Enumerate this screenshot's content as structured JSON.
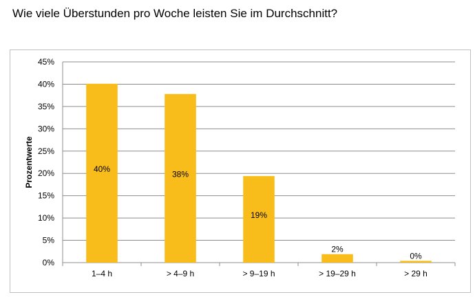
{
  "title": "Wie viele Überstunden pro Woche leisten Sie im Durchschnitt?",
  "chart_data": {
    "type": "bar",
    "title": "Wie viele Überstunden pro Woche leisten Sie im Durchschnitt?",
    "xlabel": "",
    "ylabel": "Prozentwerte",
    "categories": [
      "1–4 h",
      "> 4–9 h",
      "> 9–19 h",
      "> 19–29 h",
      "> 29 h"
    ],
    "values": [
      40,
      38,
      19,
      2,
      0
    ],
    "bar_heights": [
      40.1,
      37.8,
      19.4,
      1.9,
      0.4
    ],
    "data_labels": [
      "40%",
      "38%",
      "19%",
      "2%",
      "0%"
    ],
    "ylim": [
      0,
      45
    ],
    "yticks": [
      0,
      5,
      10,
      15,
      20,
      25,
      30,
      35,
      40,
      45
    ],
    "ytick_labels": [
      "0%",
      "5%",
      "10%",
      "15%",
      "20%",
      "25%",
      "30%",
      "35%",
      "40%",
      "45%"
    ],
    "grid": true,
    "legend": "none",
    "colors": {
      "bar": "#f9bd1b",
      "grid": "#8c8c8c",
      "axis": "#8c8c8c"
    }
  }
}
